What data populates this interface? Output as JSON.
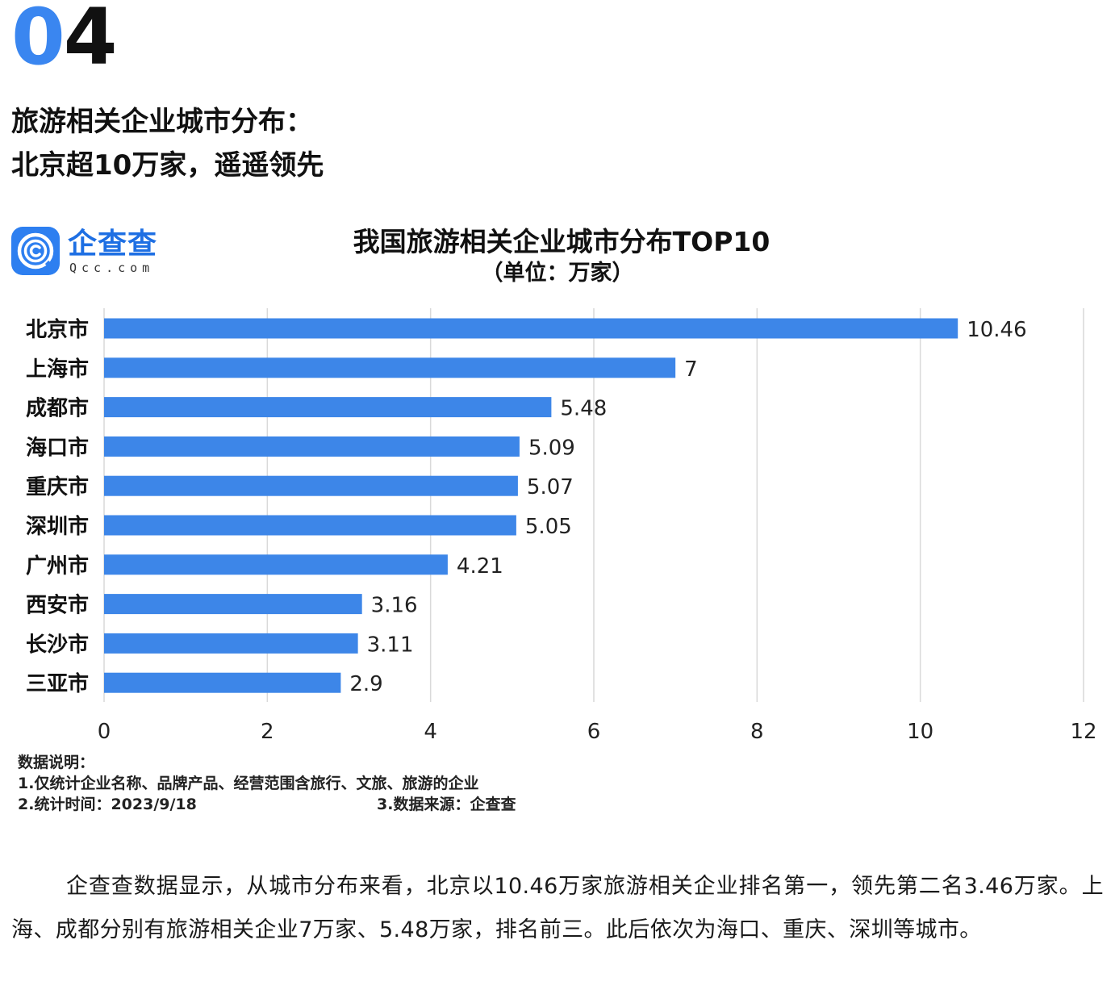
{
  "section": {
    "number_a": "0",
    "number_b": "4"
  },
  "headline": {
    "line1": "旅游相关企业城市分布：",
    "line2": "北京超10万家，遥遥领先"
  },
  "logo": {
    "name": "企查查",
    "domain": "Qcc.com",
    "brand_color": "#2d7ff0"
  },
  "chart_data": {
    "type": "bar",
    "orientation": "horizontal",
    "title": "我国旅游相关企业城市分布TOP10",
    "subtitle": "（单位：万家）",
    "categories": [
      "北京市",
      "上海市",
      "成都市",
      "海口市",
      "重庆市",
      "深圳市",
      "广州市",
      "西安市",
      "长沙市",
      "三亚市"
    ],
    "values": [
      10.46,
      7,
      5.48,
      5.09,
      5.07,
      5.05,
      4.21,
      3.16,
      3.11,
      2.9
    ],
    "data_labels": [
      "10.46",
      "7",
      "5.48",
      "5.09",
      "5.07",
      "5.05",
      "4.21",
      "3.16",
      "3.11",
      "2.9"
    ],
    "xlim": [
      0,
      12
    ],
    "xticks": [
      0,
      2,
      4,
      6,
      8,
      10,
      12
    ],
    "grid": "vertical",
    "bar_color": "#3d86e8"
  },
  "notes": {
    "heading": "数据说明：",
    "line1": "1.仅统计企业名称、品牌产品、经营范围含旅行、文旅、旅游的企业",
    "line2": "2.统计时间：2023/9/18",
    "line3": "3.数据来源：企查查"
  },
  "paragraph": "企查查数据显示，从城市分布来看，北京以10.46万家旅游相关企业排名第一，领先第二名3.46万家。上海、成都分别有旅游相关企业7万家、5.48万家，排名前三。此后依次为海口、重庆、深圳等城市。"
}
